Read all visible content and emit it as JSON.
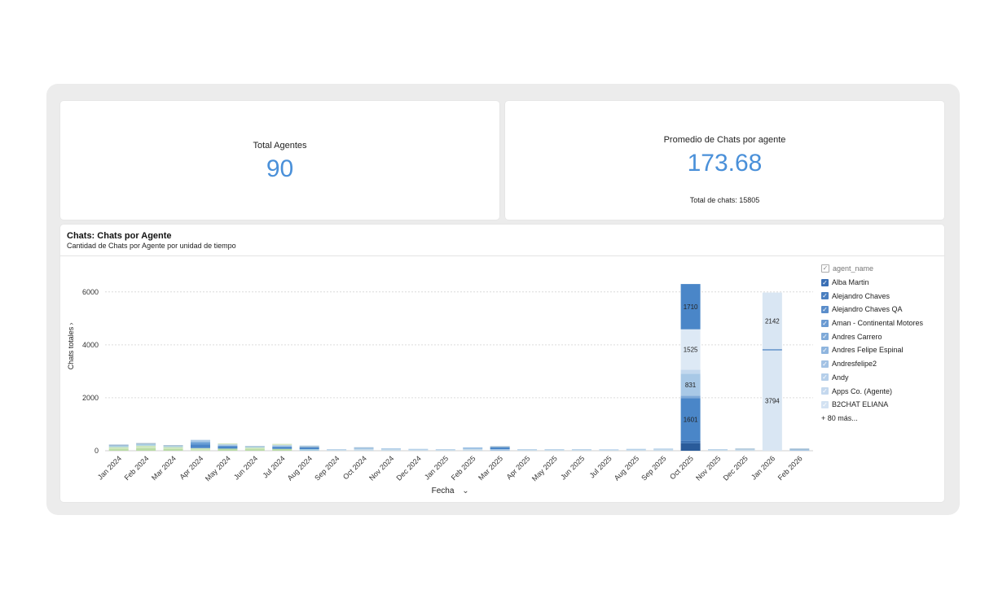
{
  "kpi_agents": {
    "title": "Total Agentes",
    "value": "90"
  },
  "kpi_avg": {
    "title": "Promedio de Chats por agente",
    "value": "173.68",
    "subtitle": "Total de chats: 15805"
  },
  "chart_card": {
    "title": "Chats: Chats por Agente",
    "subtitle": "Cantidad de Chats por Agente por unidad de tiempo"
  },
  "chart_data": {
    "type": "bar",
    "stacked": true,
    "xlabel": "Fecha",
    "ylabel": "Chats totales",
    "ylim": [
      0,
      6300
    ],
    "yticks": [
      0,
      2000,
      4000,
      6000
    ],
    "grid": true,
    "legend_position": "right",
    "categories": [
      "Jan 2024",
      "Feb 2024",
      "Mar 2024",
      "Apr 2024",
      "May 2024",
      "Jun 2024",
      "Jul 2024",
      "Aug 2024",
      "Sep 2024",
      "Oct 2024",
      "Nov 2024",
      "Dec 2024",
      "Jan 2025",
      "Feb 2025",
      "Mar 2025",
      "Apr 2025",
      "May 2025",
      "Jun 2025",
      "Jul 2025",
      "Aug 2025",
      "Sep 2025",
      "Oct 2025",
      "Nov 2025",
      "Dec 2025",
      "Jan 2026",
      "Feb 2026"
    ],
    "stacks": [
      [
        {
          "value": 60,
          "color": "#b9dca6"
        },
        {
          "value": 80,
          "color": "#cde6bd"
        },
        {
          "value": 50,
          "color": "#a8cfe3"
        },
        {
          "value": 40,
          "color": "#8fb0cc"
        }
      ],
      [
        {
          "value": 100,
          "color": "#b9dca6"
        },
        {
          "value": 90,
          "color": "#cde6bd"
        },
        {
          "value": 60,
          "color": "#a8cfe3"
        },
        {
          "value": 40,
          "color": "#9fb8cc"
        }
      ],
      [
        {
          "value": 70,
          "color": "#b9dca6"
        },
        {
          "value": 70,
          "color": "#cde6bd"
        },
        {
          "value": 40,
          "color": "#a8cfe3"
        },
        {
          "value": 30,
          "color": "#9fb8cc"
        }
      ],
      [
        {
          "value": 100,
          "color": "#cde6bd"
        },
        {
          "value": 130,
          "color": "#4a86c8"
        },
        {
          "value": 100,
          "color": "#6aa0d6"
        },
        {
          "value": 80,
          "color": "#a8c8e6"
        }
      ],
      [
        {
          "value": 80,
          "color": "#b9dca6"
        },
        {
          "value": 100,
          "color": "#4a86c8"
        },
        {
          "value": 60,
          "color": "#a8c8e6"
        },
        {
          "value": 40,
          "color": "#d4e6c4"
        }
      ],
      [
        {
          "value": 60,
          "color": "#b9dca6"
        },
        {
          "value": 60,
          "color": "#cde6bd"
        },
        {
          "value": 40,
          "color": "#a8cfe3"
        },
        {
          "value": 20,
          "color": "#9fb8cc"
        }
      ],
      [
        {
          "value": 70,
          "color": "#b9dca6"
        },
        {
          "value": 80,
          "color": "#4a86c8"
        },
        {
          "value": 60,
          "color": "#a8c8e6"
        },
        {
          "value": 50,
          "color": "#d4e6c4"
        }
      ],
      [
        {
          "value": 60,
          "color": "#a8cfe3"
        },
        {
          "value": 70,
          "color": "#4a86c8"
        },
        {
          "value": 40,
          "color": "#8fb0cc"
        },
        {
          "value": 30,
          "color": "#c8dcea"
        }
      ],
      [
        {
          "value": 40,
          "color": "#c8dcea"
        },
        {
          "value": 20,
          "color": "#a8c8e6"
        }
      ],
      [
        {
          "value": 60,
          "color": "#c8dcea"
        },
        {
          "value": 50,
          "color": "#a8c8e6"
        },
        {
          "value": 20,
          "color": "#8fb0cc"
        }
      ],
      [
        {
          "value": 50,
          "color": "#c8dcea"
        },
        {
          "value": 40,
          "color": "#a8c8e6"
        }
      ],
      [
        {
          "value": 40,
          "color": "#c8dcea"
        },
        {
          "value": 30,
          "color": "#a8c8e6"
        }
      ],
      [
        {
          "value": 40,
          "color": "#c8dcea"
        },
        {
          "value": 20,
          "color": "#a8c8e6"
        }
      ],
      [
        {
          "value": 60,
          "color": "#c8dcea"
        },
        {
          "value": 40,
          "color": "#a8c8e6"
        },
        {
          "value": 20,
          "color": "#6aa0d6"
        }
      ],
      [
        {
          "value": 60,
          "color": "#a8c8e6"
        },
        {
          "value": 70,
          "color": "#4a86c8"
        },
        {
          "value": 40,
          "color": "#8fb0cc"
        }
      ],
      [
        {
          "value": 40,
          "color": "#c8dcea"
        },
        {
          "value": 20,
          "color": "#a8c8e6"
        }
      ],
      [
        {
          "value": 40,
          "color": "#c8dcea"
        },
        {
          "value": 20,
          "color": "#a8c8e6"
        }
      ],
      [
        {
          "value": 40,
          "color": "#c8dcea"
        },
        {
          "value": 20,
          "color": "#a8c8e6"
        }
      ],
      [
        {
          "value": 30,
          "color": "#c8dcea"
        },
        {
          "value": 20,
          "color": "#a8c8e6"
        }
      ],
      [
        {
          "value": 40,
          "color": "#c8dcea"
        },
        {
          "value": 30,
          "color": "#a8c8e6"
        }
      ],
      [
        {
          "value": 50,
          "color": "#c8dcea"
        },
        {
          "value": 30,
          "color": "#a8c8e6"
        }
      ],
      [
        {
          "value": 280,
          "color": "#2a5b9a"
        },
        {
          "value": 100,
          "color": "#3d72b4"
        },
        {
          "value": 1601,
          "color": "#4a86c8",
          "label": "1601"
        },
        {
          "value": 100,
          "color": "#7ea9d8"
        },
        {
          "value": 831,
          "color": "#a8c8e6",
          "label": "831"
        },
        {
          "value": 150,
          "color": "#c3d8ee"
        },
        {
          "value": 1525,
          "color": "#dde9f5",
          "label": "1525"
        },
        {
          "value": 1710,
          "color": "#4a86c8",
          "label": "1710"
        }
      ],
      [
        {
          "value": 40,
          "color": "#c8dcea"
        },
        {
          "value": 20,
          "color": "#a8c8e6"
        }
      ],
      [
        {
          "value": 50,
          "color": "#c8dcea"
        },
        {
          "value": 30,
          "color": "#8fb0cc"
        }
      ],
      [
        {
          "value": 3794,
          "color": "#d9e6f3",
          "label": "3794"
        },
        {
          "value": 40,
          "color": "#3f78bd"
        },
        {
          "value": 2142,
          "color": "#d9e6f3",
          "label": "2142"
        }
      ],
      [
        {
          "value": 40,
          "color": "#a8c8e6"
        },
        {
          "value": 40,
          "color": "#8fb0cc"
        }
      ]
    ],
    "legend": {
      "title": "agent_name",
      "items": [
        {
          "name": "Alba Martin",
          "color": "#3a6fb5"
        },
        {
          "name": "Alejandro Chaves",
          "color": "#4a7fc0"
        },
        {
          "name": "Alejandro Chaves QA",
          "color": "#5a8dca"
        },
        {
          "name": "Aman - Continental Motores",
          "color": "#6a9ad2"
        },
        {
          "name": "Andres Carrero",
          "color": "#7ea9d8"
        },
        {
          "name": "Andres Felipe Espinal",
          "color": "#8fb5de"
        },
        {
          "name": "Andresfelipe2",
          "color": "#a3c2e4"
        },
        {
          "name": "Andy",
          "color": "#b5cfea"
        },
        {
          "name": "Apps Co. (Agente)",
          "color": "#c4d8ee"
        },
        {
          "name": "B2CHAT ELIANA",
          "color": "#d3e2f2"
        }
      ],
      "more": "+ 80 más..."
    }
  }
}
